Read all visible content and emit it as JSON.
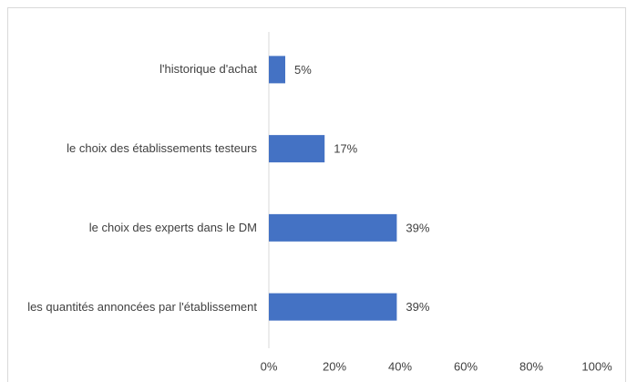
{
  "chart_data": {
    "type": "bar",
    "orientation": "horizontal",
    "categories": [
      "l'historique d'achat",
      "le choix des établissements testeurs",
      "le choix des experts dans le DM",
      "les quantités annoncées par l'établissement"
    ],
    "values": [
      5,
      17,
      39,
      39
    ],
    "value_labels": [
      "5%",
      "17%",
      "39%",
      "39%"
    ],
    "color": "#4472c4",
    "xlim": [
      0,
      100
    ],
    "xticks": [
      {
        "value": 0,
        "label": "0%"
      },
      {
        "value": 20,
        "label": "20%"
      },
      {
        "value": 40,
        "label": "40%"
      },
      {
        "value": 60,
        "label": "60%"
      },
      {
        "value": 80,
        "label": "80%"
      },
      {
        "value": 100,
        "label": "100%"
      }
    ],
    "grid": false
  }
}
